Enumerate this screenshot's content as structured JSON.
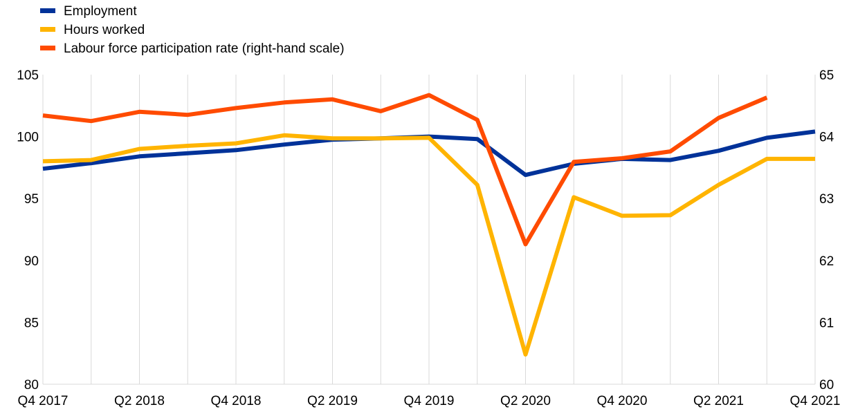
{
  "chart_data": {
    "type": "line",
    "title": "",
    "xlabel": "",
    "ylabel": "",
    "y2label": "",
    "x": [
      "Q4 2017",
      "Q1 2018",
      "Q2 2018",
      "Q3 2018",
      "Q4 2018",
      "Q1 2019",
      "Q2 2019",
      "Q3 2019",
      "Q4 2019",
      "Q1 2020",
      "Q2 2020",
      "Q3 2020",
      "Q4 2020",
      "Q1 2021",
      "Q2 2021",
      "Q3 2021",
      "Q4 2021"
    ],
    "x_tick_labels": [
      "Q4 2017",
      "Q2 2018",
      "Q4 2018",
      "Q2 2019",
      "Q4 2019",
      "Q2 2020",
      "Q4 2020",
      "Q2 2021",
      "Q4 2021"
    ],
    "ylim": [
      80,
      105
    ],
    "y_ticks": [
      80,
      85,
      90,
      95,
      100,
      105
    ],
    "y2lim": [
      60,
      65
    ],
    "y2_ticks": [
      60,
      61,
      62,
      63,
      64,
      65
    ],
    "grid": "vertical",
    "legend_position": "top-left",
    "series": [
      {
        "name": "Employment",
        "axis": "left",
        "color": "#003299",
        "values": [
          97.4,
          97.85,
          98.4,
          98.65,
          98.9,
          99.35,
          99.75,
          99.85,
          100.0,
          99.8,
          96.9,
          97.8,
          98.2,
          98.1,
          98.85,
          99.9,
          100.4
        ]
      },
      {
        "name": "Hours worked",
        "axis": "left",
        "color": "#FFB400",
        "values": [
          98.0,
          98.1,
          99.0,
          99.25,
          99.45,
          100.1,
          99.85,
          99.85,
          99.9,
          96.1,
          82.4,
          95.1,
          93.6,
          93.65,
          96.1,
          98.2,
          98.2
        ]
      },
      {
        "name": "Labour force participation rate (right-hand scale)",
        "axis": "right",
        "color": "#FF4B00",
        "values": [
          64.34,
          64.25,
          64.4,
          64.35,
          64.46,
          64.55,
          64.6,
          64.41,
          64.67,
          64.27,
          62.26,
          63.59,
          63.65,
          63.76,
          64.3,
          64.63,
          null
        ]
      }
    ]
  }
}
